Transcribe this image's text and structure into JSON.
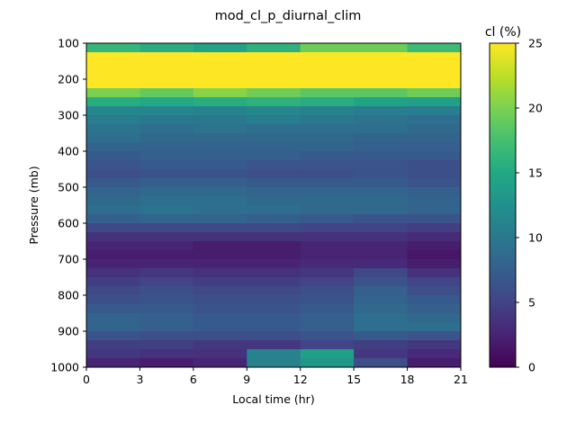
{
  "chart_data": {
    "type": "heatmap",
    "title": "mod_cl_p_diurnal_clim",
    "xlabel": "Local time (hr)",
    "ylabel": "Pressure (mb)",
    "colorbar_label": "cl (%)",
    "colormap": "viridis",
    "clim": [
      0,
      25
    ],
    "xlim": [
      0,
      21
    ],
    "ylim": [
      1000,
      100
    ],
    "y_inverted": true,
    "x_ticks": [
      "0",
      "3",
      "6",
      "9",
      "12",
      "15",
      "18",
      "21"
    ],
    "y_ticks": [
      "100",
      "200",
      "300",
      "400",
      "500",
      "600",
      "700",
      "800",
      "900",
      "1000"
    ],
    "colorbar_ticks": [
      "0",
      "5",
      "10",
      "15",
      "20",
      "25"
    ],
    "x_edges": [
      0,
      3,
      6,
      9,
      12,
      15,
      18,
      21
    ],
    "y_edges": [
      100,
      125,
      225,
      250,
      275,
      300,
      325,
      350,
      375,
      400,
      425,
      450,
      475,
      500,
      525,
      550,
      575,
      600,
      625,
      650,
      675,
      700,
      725,
      750,
      775,
      800,
      825,
      850,
      875,
      900,
      925,
      950,
      975,
      1000
    ],
    "values": [
      [
        16.5,
        15.5,
        14.5,
        16.0,
        19.5,
        19.5,
        17.0
      ],
      [
        25,
        25,
        25,
        25,
        25,
        25,
        25
      ],
      [
        20.0,
        19.0,
        20.5,
        19.5,
        18.5,
        18.5,
        19.5
      ],
      [
        15.5,
        15.0,
        15.5,
        16.0,
        15.5,
        14.5,
        14.0
      ],
      [
        11.5,
        11.5,
        11.0,
        11.5,
        11.0,
        10.5,
        10.5
      ],
      [
        10.5,
        10.0,
        10.0,
        10.5,
        10.0,
        9.5,
        9.0
      ],
      [
        9.5,
        9.0,
        9.5,
        9.0,
        9.0,
        9.0,
        8.5
      ],
      [
        9.0,
        8.5,
        8.5,
        8.5,
        8.5,
        8.0,
        8.0
      ],
      [
        8.0,
        8.0,
        8.0,
        8.0,
        8.0,
        7.5,
        7.5
      ],
      [
        7.0,
        7.5,
        7.5,
        7.5,
        7.0,
        7.0,
        7.0
      ],
      [
        6.5,
        7.0,
        7.0,
        6.5,
        6.5,
        6.5,
        6.0
      ],
      [
        6.0,
        6.5,
        6.5,
        6.0,
        6.0,
        6.5,
        6.0
      ],
      [
        7.0,
        7.5,
        7.5,
        7.0,
        7.0,
        7.0,
        6.5
      ],
      [
        8.0,
        8.5,
        8.5,
        8.0,
        8.0,
        8.0,
        7.5
      ],
      [
        8.5,
        9.0,
        9.0,
        8.5,
        8.5,
        8.5,
        8.0
      ],
      [
        9.0,
        9.5,
        9.0,
        9.0,
        8.5,
        8.5,
        8.0
      ],
      [
        7.5,
        8.0,
        8.0,
        7.5,
        7.0,
        6.5,
        6.5
      ],
      [
        5.5,
        5.5,
        5.5,
        5.5,
        5.0,
        5.0,
        4.5
      ],
      [
        3.5,
        3.5,
        3.5,
        3.5,
        3.5,
        3.5,
        3.0
      ],
      [
        2.5,
        2.5,
        2.0,
        2.0,
        2.5,
        2.5,
        2.0
      ],
      [
        2.0,
        2.0,
        2.0,
        2.0,
        2.5,
        2.5,
        1.5
      ],
      [
        2.5,
        2.5,
        2.5,
        2.5,
        3.0,
        3.0,
        2.0
      ],
      [
        3.5,
        4.0,
        3.5,
        3.5,
        4.0,
        5.5,
        3.5
      ],
      [
        4.5,
        5.0,
        4.5,
        4.5,
        5.0,
        6.5,
        5.0
      ],
      [
        5.5,
        6.0,
        5.5,
        5.5,
        6.0,
        7.5,
        6.0
      ],
      [
        6.0,
        6.5,
        6.0,
        6.0,
        6.5,
        8.0,
        7.0
      ],
      [
        7.0,
        7.0,
        6.5,
        6.5,
        7.0,
        8.5,
        7.5
      ],
      [
        8.0,
        7.5,
        7.0,
        7.0,
        7.5,
        9.0,
        8.5
      ],
      [
        8.0,
        7.5,
        7.0,
        7.0,
        7.5,
        9.0,
        9.0
      ],
      [
        6.5,
        6.0,
        6.0,
        6.0,
        6.5,
        7.0,
        6.5
      ],
      [
        4.5,
        4.5,
        4.0,
        4.0,
        5.0,
        4.5,
        4.0
      ],
      [
        4.0,
        3.5,
        3.5,
        11.0,
        14.0,
        4.0,
        3.0
      ],
      [
        2.5,
        2.0,
        2.5,
        11.0,
        13.0,
        6.0,
        2.0
      ]
    ]
  }
}
